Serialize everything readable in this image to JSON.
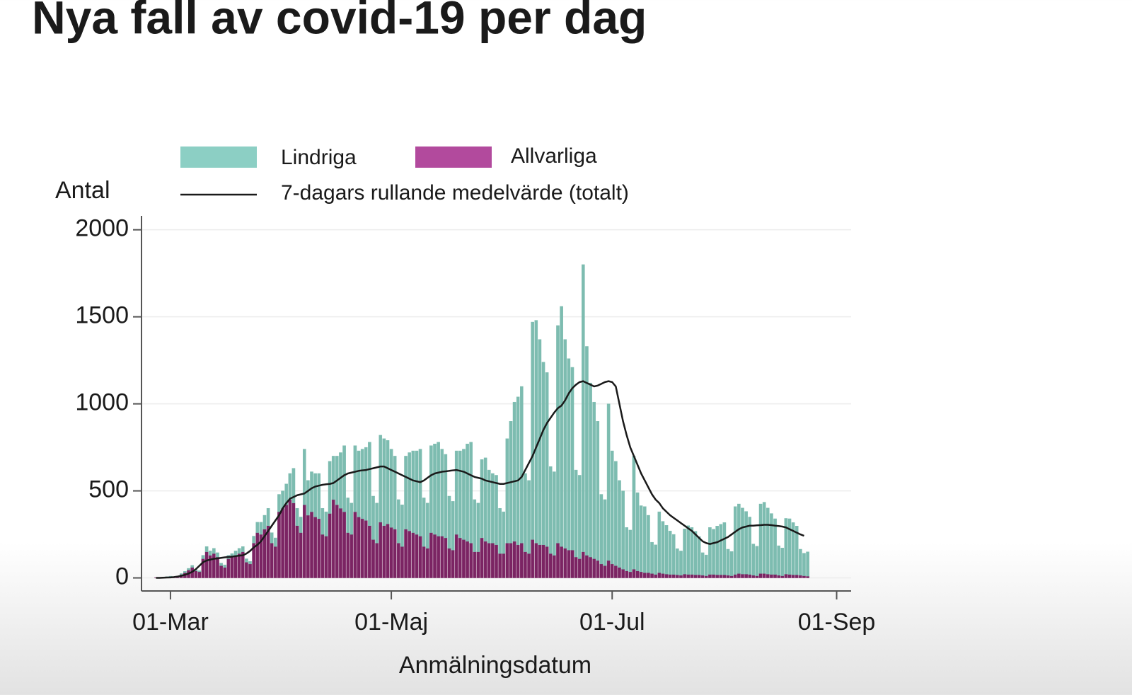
{
  "chart_data": {
    "type": "bar",
    "stacked": true,
    "title": "Nya fall av covid-19 per dag",
    "ylabel": "Antal",
    "xlabel": "Anmälningsdatum",
    "xlim": [
      -8,
      188
    ],
    "ylim": [
      -75,
      2080
    ],
    "xticks": [
      {
        "value": 0,
        "label": "01-Mar"
      },
      {
        "value": 61,
        "label": "01-Maj"
      },
      {
        "value": 122,
        "label": "01-Jul"
      },
      {
        "value": 184,
        "label": "01-Sep"
      }
    ],
    "yticks": [
      0,
      500,
      1000,
      1500,
      2000
    ],
    "grid": true,
    "x": [
      -4,
      -3,
      -2,
      -1,
      0,
      1,
      2,
      3,
      4,
      5,
      6,
      7,
      8,
      9,
      10,
      11,
      12,
      13,
      14,
      15,
      16,
      17,
      18,
      19,
      20,
      21,
      22,
      23,
      24,
      25,
      26,
      27,
      28,
      29,
      30,
      31,
      32,
      33,
      34,
      35,
      36,
      37,
      38,
      39,
      40,
      41,
      42,
      43,
      44,
      45,
      46,
      47,
      48,
      49,
      50,
      51,
      52,
      53,
      54,
      55,
      56,
      57,
      58,
      59,
      60,
      61,
      62,
      63,
      64,
      65,
      66,
      67,
      68,
      69,
      70,
      71,
      72,
      73,
      74,
      75,
      76,
      77,
      78,
      79,
      80,
      81,
      82,
      83,
      84,
      85,
      86,
      87,
      88,
      89,
      90,
      91,
      92,
      93,
      94,
      95,
      96,
      97,
      98,
      99,
      100,
      101,
      102,
      103,
      104,
      105,
      106,
      107,
      108,
      109,
      110,
      111,
      112,
      113,
      114,
      115,
      116,
      117,
      118,
      119,
      120,
      121,
      122,
      123,
      124,
      125,
      126,
      127,
      128,
      129,
      130,
      131,
      132,
      133,
      134,
      135,
      136,
      137,
      138,
      139,
      140,
      141,
      142,
      143,
      144,
      145,
      146,
      147,
      148,
      149,
      150,
      151,
      152,
      153,
      154,
      155,
      156,
      157,
      158,
      159,
      160,
      161,
      162,
      163,
      164,
      165,
      166,
      167,
      168,
      169,
      170,
      171,
      172,
      173,
      174,
      175,
      176
    ],
    "series": [
      {
        "name": "Allvarliga",
        "color": "#7b2463",
        "legend_color": "#b24a9d",
        "values": [
          2,
          3,
          4,
          6,
          8,
          5,
          4,
          20,
          30,
          45,
          60,
          40,
          35,
          110,
          150,
          130,
          140,
          120,
          70,
          60,
          110,
          120,
          130,
          140,
          150,
          90,
          80,
          200,
          260,
          250,
          280,
          300,
          200,
          180,
          380,
          400,
          420,
          450,
          430,
          300,
          260,
          420,
          360,
          380,
          350,
          340,
          250,
          240,
          370,
          450,
          420,
          400,
          380,
          260,
          250,
          380,
          350,
          340,
          330,
          300,
          220,
          200,
          320,
          300,
          310,
          290,
          280,
          200,
          180,
          280,
          270,
          260,
          250,
          240,
          180,
          170,
          260,
          250,
          240,
          240,
          230,
          170,
          160,
          250,
          230,
          220,
          210,
          200,
          150,
          150,
          230,
          210,
          200,
          200,
          190,
          140,
          140,
          200,
          200,
          210,
          190,
          200,
          150,
          140,
          220,
          200,
          190,
          190,
          180,
          140,
          130,
          200,
          180,
          170,
          160,
          160,
          120,
          110,
          150,
          130,
          120,
          110,
          100,
          80,
          70,
          100,
          80,
          70,
          60,
          50,
          40,
          35,
          50,
          40,
          35,
          30,
          30,
          25,
          20,
          30,
          25,
          22,
          20,
          20,
          18,
          15,
          22,
          20,
          20,
          18,
          18,
          15,
          12,
          20,
          20,
          18,
          18,
          18,
          15,
          12,
          20,
          25,
          22,
          22,
          20,
          15,
          12,
          25,
          25,
          22,
          20,
          20,
          15,
          12,
          22,
          20,
          18,
          18,
          15,
          12,
          10
        ]
      },
      {
        "name": "Lindriga",
        "color": "#7dbcb0",
        "legend_color": "#8ccfc4",
        "values": [
          0,
          0,
          1,
          1,
          2,
          1,
          1,
          5,
          8,
          10,
          12,
          8,
          6,
          20,
          30,
          25,
          30,
          25,
          15,
          15,
          20,
          20,
          25,
          30,
          30,
          20,
          15,
          40,
          60,
          70,
          80,
          100,
          60,
          50,
          100,
          100,
          120,
          150,
          200,
          100,
          90,
          320,
          200,
          230,
          250,
          260,
          150,
          140,
          300,
          250,
          280,
          320,
          380,
          200,
          180,
          380,
          380,
          400,
          420,
          480,
          250,
          230,
          500,
          500,
          480,
          450,
          420,
          250,
          240,
          420,
          450,
          470,
          480,
          500,
          280,
          260,
          500,
          520,
          540,
          500,
          480,
          300,
          280,
          480,
          500,
          520,
          560,
          580,
          300,
          280,
          450,
          480,
          420,
          400,
          400,
          260,
          240,
          600,
          700,
          800,
          850,
          900,
          450,
          420,
          1250,
          1280,
          1180,
          1050,
          1000,
          500,
          480,
          1250,
          1380,
          1200,
          1100,
          1050,
          500,
          480,
          1650,
          1200,
          1000,
          900,
          800,
          400,
          380,
          900,
          650,
          600,
          500,
          450,
          250,
          240,
          650,
          450,
          380,
          380,
          330,
          180,
          170,
          350,
          300,
          280,
          250,
          230,
          150,
          140,
          260,
          280,
          270,
          250,
          220,
          130,
          120,
          270,
          260,
          280,
          290,
          300,
          150,
          140,
          390,
          400,
          380,
          360,
          330,
          180,
          170,
          400,
          410,
          380,
          350,
          320,
          170,
          160,
          320,
          320,
          300,
          280,
          150,
          130,
          140
        ]
      }
    ],
    "line_series": {
      "name": "7-dagars rullande medelvärde (totalt)",
      "color": "#1a1a1a",
      "values": [
        0,
        0,
        1,
        2,
        3,
        5,
        8,
        12,
        18,
        25,
        35,
        50,
        70,
        90,
        100,
        105,
        110,
        112,
        115,
        118,
        120,
        122,
        125,
        128,
        130,
        140,
        155,
        175,
        190,
        210,
        240,
        270,
        300,
        330,
        360,
        400,
        430,
        455,
        465,
        475,
        480,
        485,
        500,
        515,
        525,
        530,
        535,
        538,
        540,
        545,
        560,
        575,
        590,
        600,
        605,
        610,
        615,
        618,
        620,
        625,
        630,
        635,
        640,
        640,
        630,
        620,
        610,
        600,
        590,
        580,
        570,
        560,
        555,
        550,
        560,
        575,
        590,
        600,
        605,
        610,
        612,
        615,
        618,
        620,
        615,
        610,
        600,
        590,
        580,
        575,
        570,
        560,
        555,
        550,
        545,
        540,
        540,
        545,
        550,
        555,
        560,
        580,
        620,
        660,
        700,
        750,
        800,
        850,
        890,
        920,
        950,
        975,
        990,
        1020,
        1060,
        1090,
        1110,
        1125,
        1130,
        1120,
        1110,
        1100,
        1105,
        1115,
        1125,
        1130,
        1125,
        1100,
        1000,
        900,
        820,
        750,
        700,
        650,
        600,
        560,
        520,
        480,
        450,
        430,
        400,
        380,
        360,
        345,
        330,
        315,
        300,
        285,
        270,
        250,
        230,
        210,
        200,
        195,
        200,
        205,
        215,
        225,
        235,
        250,
        265,
        280,
        290,
        295,
        300,
        300,
        302,
        303,
        305,
        305,
        303,
        300,
        298,
        295,
        290,
        280,
        270,
        260,
        250,
        242,
        null
      ]
    }
  }
}
